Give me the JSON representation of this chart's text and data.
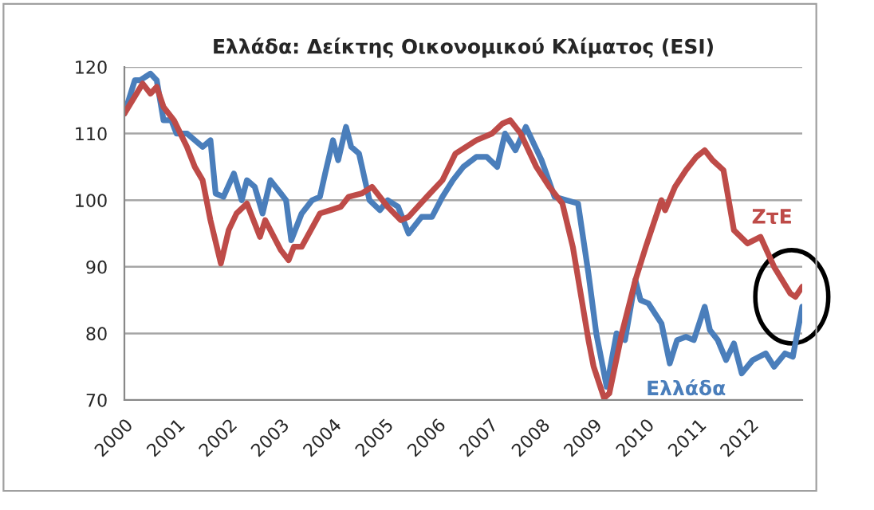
{
  "chart_data": {
    "type": "line",
    "title": "Ελλάδα: Δείκτης Οικονομικού Κλίματος (ESI)",
    "xlim": [
      2000,
      2013
    ],
    "xticks": [
      2000,
      2001,
      2002,
      2003,
      2004,
      2005,
      2006,
      2007,
      2008,
      2009,
      2010,
      2011,
      2012
    ],
    "ylim": [
      70,
      120
    ],
    "yticks": [
      70,
      80,
      90,
      100,
      110,
      120
    ],
    "grid": "y",
    "legend": false,
    "marker": "none",
    "line_style": "solid",
    "series": [
      {
        "name": "Ελλάδα",
        "color": "#4a7ebb",
        "x": [
          2000.0,
          2000.2,
          2000.3,
          2000.5,
          2000.62,
          2000.75,
          2000.9,
          2001.0,
          2001.2,
          2001.5,
          2001.65,
          2001.75,
          2001.9,
          2002.1,
          2002.25,
          2002.35,
          2002.5,
          2002.65,
          2002.8,
          2003.0,
          2003.1,
          2003.2,
          2003.4,
          2003.6,
          2003.75,
          2003.85,
          2004.0,
          2004.1,
          2004.25,
          2004.35,
          2004.5,
          2004.7,
          2004.9,
          2005.05,
          2005.25,
          2005.45,
          2005.7,
          2005.9,
          2006.1,
          2006.3,
          2006.5,
          2006.75,
          2006.95,
          2007.15,
          2007.3,
          2007.5,
          2007.7,
          2008.0,
          2008.25,
          2008.7,
          2008.9,
          2009.05,
          2009.25,
          2009.44,
          2009.6,
          2009.8,
          2009.9,
          2010.05,
          2010.3,
          2010.46,
          2010.6,
          2010.77,
          2010.92,
          2011.13,
          2011.23,
          2011.38,
          2011.54,
          2011.69,
          2011.84,
          2012.05,
          2012.3,
          2012.46,
          2012.67,
          2012.82,
          2013.0
        ],
        "values": [
          113,
          118,
          118,
          119,
          118,
          112,
          112,
          110,
          110,
          108,
          109,
          101,
          100.5,
          104,
          100,
          103,
          102,
          98,
          103,
          101,
          100,
          94,
          98,
          100,
          100.5,
          104,
          109,
          106,
          111,
          108,
          107,
          100,
          98.5,
          100,
          99,
          95,
          97.5,
          97.5,
          100.5,
          103,
          105,
          106.5,
          106.5,
          105,
          110,
          107.5,
          111,
          106,
          100.5,
          99.5,
          89,
          80,
          72,
          80,
          79,
          88,
          85,
          84.5,
          81.5,
          75.5,
          79,
          79.5,
          79,
          84,
          80.5,
          79,
          76,
          78.5,
          74,
          76,
          77,
          75,
          77,
          76.5,
          84
        ]
      },
      {
        "name": "ΖτΕ",
        "color": "#be4b48",
        "x": [
          2000.0,
          2000.35,
          2000.5,
          2000.62,
          2000.75,
          2000.95,
          2001.2,
          2001.35,
          2001.5,
          2001.65,
          2001.85,
          2002.0,
          2002.15,
          2002.35,
          2002.6,
          2002.7,
          2003.0,
          2003.15,
          2003.25,
          2003.4,
          2003.75,
          2003.95,
          2004.15,
          2004.3,
          2004.55,
          2004.75,
          2005.05,
          2005.3,
          2005.45,
          2005.8,
          2006.1,
          2006.35,
          2006.75,
          2007.05,
          2007.25,
          2007.4,
          2007.6,
          2007.9,
          2008.15,
          2008.4,
          2008.6,
          2008.9,
          2009.0,
          2009.2,
          2009.3,
          2009.54,
          2009.8,
          2010.0,
          2010.15,
          2010.3,
          2010.37,
          2010.56,
          2010.77,
          2010.97,
          2011.13,
          2011.28,
          2011.49,
          2011.69,
          2011.95,
          2012.2,
          2012.46,
          2012.77,
          2012.87,
          2013.0
        ],
        "values": [
          113,
          117.5,
          116,
          117,
          114,
          112,
          108,
          105,
          103,
          97,
          90.5,
          95.5,
          98,
          99.5,
          94.5,
          97,
          92.5,
          91,
          93,
          93,
          98,
          98.5,
          99,
          100.5,
          101,
          102,
          99,
          97,
          97.5,
          100.5,
          103,
          107,
          109,
          110,
          111.5,
          112,
          110,
          105,
          102,
          99.5,
          93,
          79,
          75,
          70.3,
          71,
          80,
          88,
          93,
          96.5,
          100,
          98.5,
          102,
          104.5,
          106.5,
          107.5,
          106,
          104.5,
          95.5,
          93.5,
          94.5,
          90,
          86,
          85.5,
          87
        ]
      }
    ]
  }
}
